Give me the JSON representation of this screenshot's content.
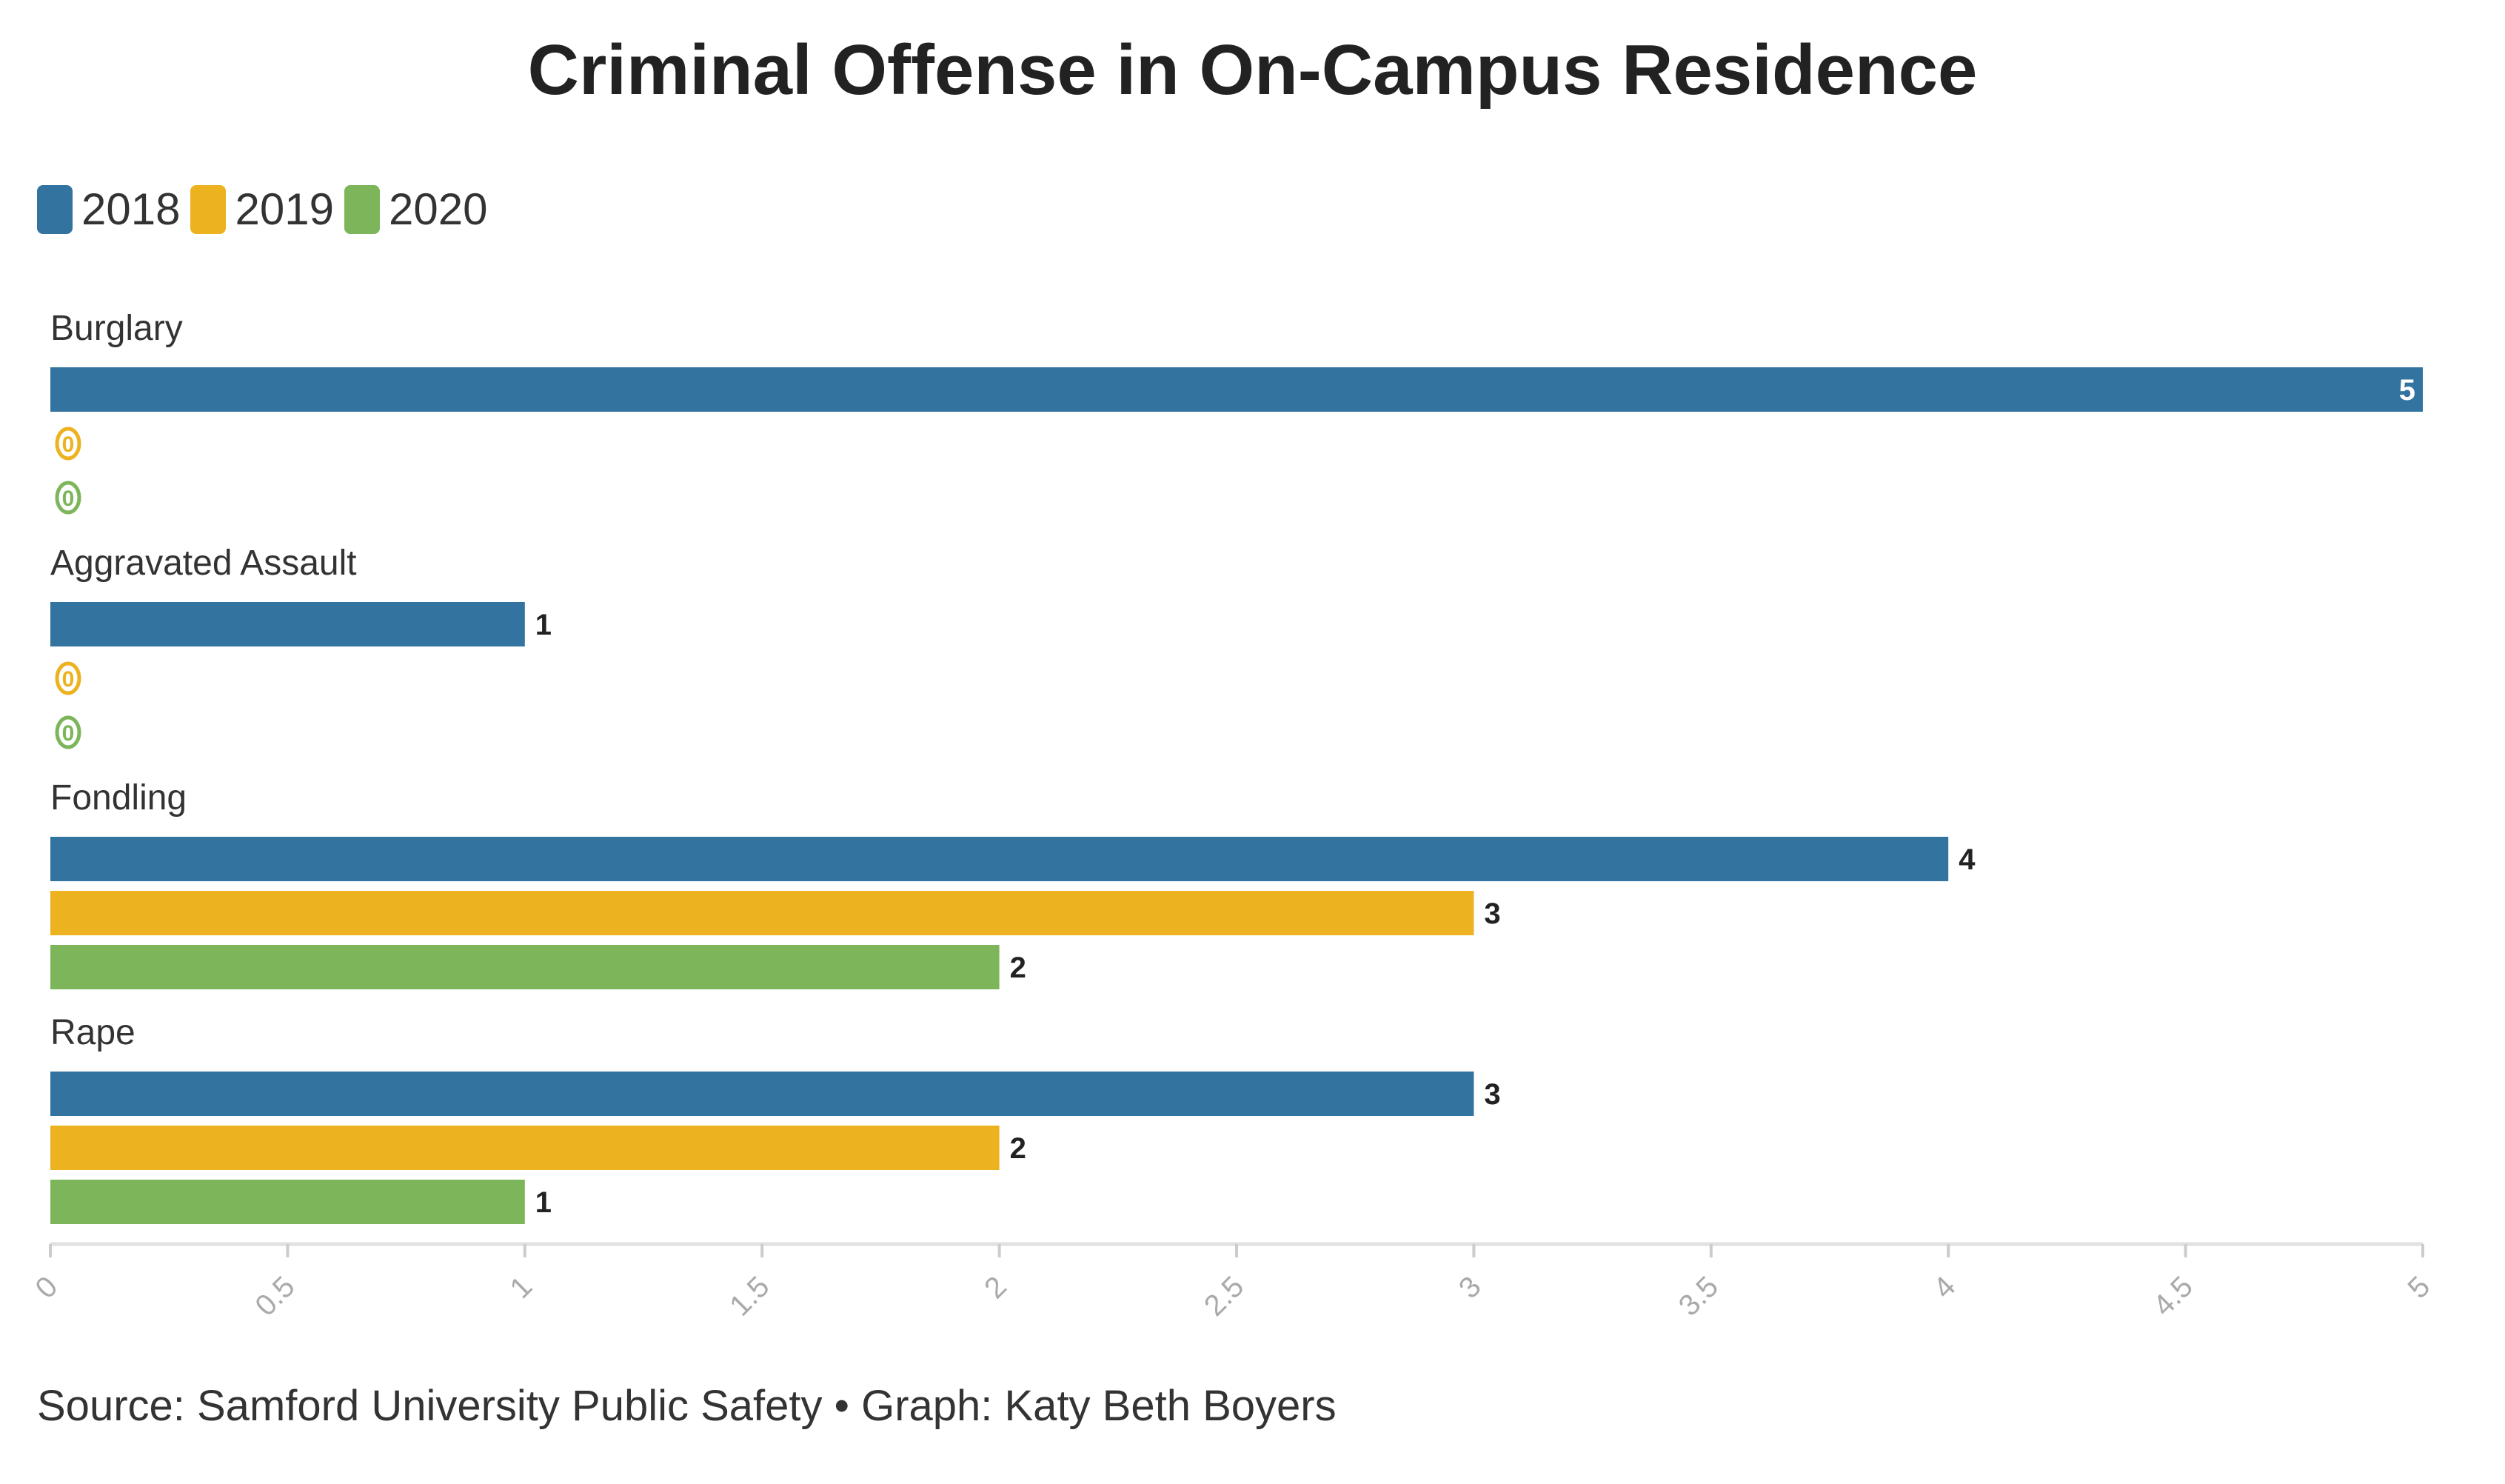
{
  "chart_data": {
    "type": "bar",
    "orientation": "horizontal",
    "title": "Criminal Offense in On-Campus Residence",
    "categories": [
      "Burglary",
      "Aggravated Assault",
      "Fondling",
      "Rape"
    ],
    "series": [
      {
        "name": "2018",
        "color": "#33739f",
        "values": [
          5,
          1,
          4,
          3
        ]
      },
      {
        "name": "2019",
        "color": "#ecb220",
        "values": [
          0,
          0,
          3,
          2
        ]
      },
      {
        "name": "2020",
        "color": "#7db65a",
        "values": [
          0,
          0,
          2,
          1
        ]
      }
    ],
    "xlim": [
      0,
      5
    ],
    "xticks": [
      "0",
      "0.5",
      "1",
      "1.5",
      "2",
      "2.5",
      "3",
      "3.5",
      "4",
      "4.5",
      "5"
    ],
    "xlabel": "",
    "ylabel": "",
    "grid": false,
    "legend_position": "top-left",
    "source": "Source: Samford University Public Safety • Graph: Katy Beth Boyers"
  }
}
